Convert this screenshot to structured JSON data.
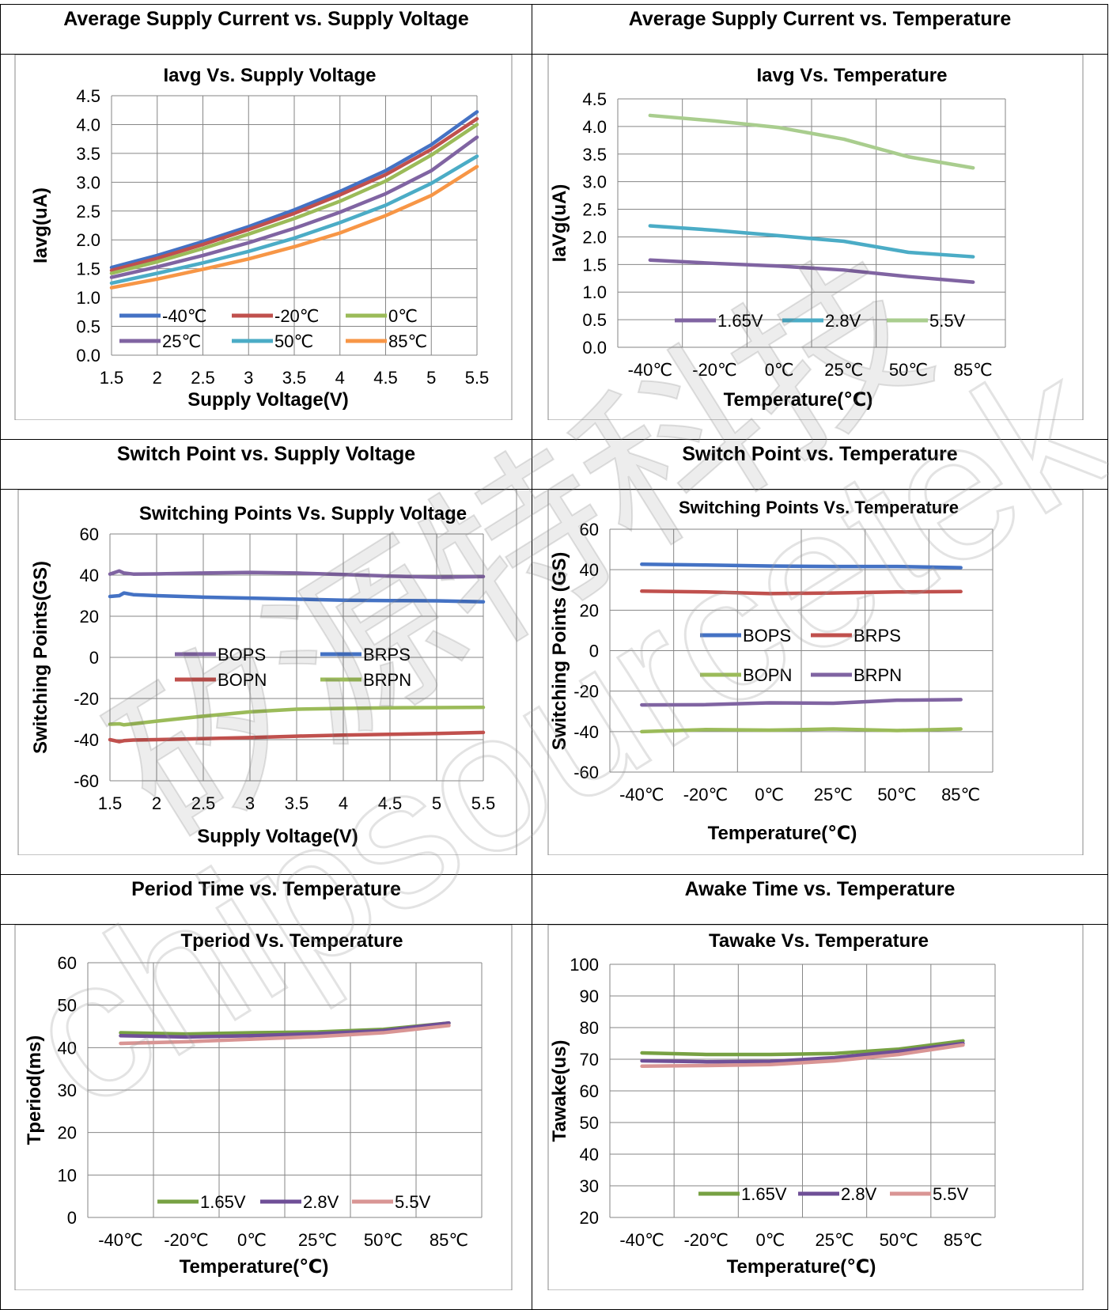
{
  "sections": [
    {
      "heading": "Average Supply Current vs. Supply Voltage"
    },
    {
      "heading": "Average Supply Current vs. Temperature"
    },
    {
      "heading": "Switch Point vs. Supply Voltage"
    },
    {
      "heading": "Switch Point vs. Temperature"
    },
    {
      "heading": "Period Time vs. Temperature"
    },
    {
      "heading": "Awake Time vs. Temperature"
    }
  ],
  "watermark": {
    "line1": "矽源特科技",
    "line2": "chipsourcetek"
  },
  "chart_data": [
    {
      "type": "line",
      "title": "Iavg Vs. Supply Voltage",
      "xlabel": "Supply Voltage(V)",
      "ylabel": "Iavg(uA)",
      "x_ticks": [
        "1.5",
        "2",
        "2.5",
        "3",
        "3.5",
        "4",
        "4.5",
        "5",
        "5.5"
      ],
      "y_ticks": [
        "0.0",
        "0.5",
        "1.0",
        "1.5",
        "2.0",
        "2.5",
        "3.0",
        "3.5",
        "4.0",
        "4.5"
      ],
      "xlim": [
        1.5,
        5.5
      ],
      "ylim": [
        0,
        4.5
      ],
      "grid": true,
      "legend": "bottom-inside",
      "x": [
        1.5,
        2.0,
        2.5,
        3.0,
        3.5,
        4.0,
        4.5,
        5.0,
        5.5
      ],
      "series": [
        {
          "name": "-40℃",
          "color": "#4472c4",
          "values": [
            1.52,
            1.73,
            1.97,
            2.23,
            2.52,
            2.84,
            3.2,
            3.65,
            4.22
          ]
        },
        {
          "name": "-20℃",
          "color": "#c0504d",
          "values": [
            1.47,
            1.68,
            1.92,
            2.18,
            2.46,
            2.78,
            3.13,
            3.57,
            4.1
          ]
        },
        {
          "name": "0℃",
          "color": "#9bbb59",
          "values": [
            1.42,
            1.62,
            1.85,
            2.1,
            2.37,
            2.67,
            3.02,
            3.47,
            4.0
          ]
        },
        {
          "name": "25℃",
          "color": "#8064a2",
          "values": [
            1.35,
            1.53,
            1.73,
            1.95,
            2.2,
            2.48,
            2.8,
            3.2,
            3.78
          ]
        },
        {
          "name": "50℃",
          "color": "#4bacc6",
          "values": [
            1.25,
            1.42,
            1.6,
            1.8,
            2.03,
            2.3,
            2.6,
            2.98,
            3.45
          ]
        },
        {
          "name": "85℃",
          "color": "#f79646",
          "values": [
            1.17,
            1.32,
            1.49,
            1.67,
            1.88,
            2.12,
            2.42,
            2.77,
            3.27
          ]
        }
      ]
    },
    {
      "type": "line",
      "title": "Iavg  Vs. Temperature",
      "xlabel": "Temperature(℃)",
      "ylabel": "IaVg(uA)",
      "categories": [
        "-40℃",
        "-20℃",
        "0℃",
        "25℃",
        "50℃",
        "85℃"
      ],
      "y_ticks": [
        "0.0",
        "0.5",
        "1.0",
        "1.5",
        "2.0",
        "2.5",
        "3.0",
        "3.5",
        "4.0",
        "4.5"
      ],
      "ylim": [
        0,
        4.5
      ],
      "grid": true,
      "legend": "bottom-inside",
      "series": [
        {
          "name": "1.65V",
          "color": "#8064a2",
          "values": [
            1.58,
            1.52,
            1.47,
            1.4,
            1.28,
            1.18
          ]
        },
        {
          "name": "2.8V",
          "color": "#4bacc6",
          "values": [
            2.2,
            2.12,
            2.02,
            1.92,
            1.72,
            1.64
          ]
        },
        {
          "name": "5.5V",
          "color": "#a9cd8e",
          "values": [
            4.2,
            4.1,
            3.98,
            3.77,
            3.45,
            3.25
          ]
        }
      ]
    },
    {
      "type": "line",
      "title": "Switching Points Vs. Supply Voltage",
      "xlabel": "Supply Voltage(V)",
      "ylabel": "Switching Points(GS)",
      "x_ticks": [
        "1.5",
        "2",
        "2.5",
        "3",
        "3.5",
        "4",
        "4.5",
        "5",
        "5.5"
      ],
      "y_ticks": [
        "-60",
        "-40",
        "-20",
        "0",
        "20",
        "40",
        "60"
      ],
      "xlim": [
        1.5,
        5.5
      ],
      "ylim": [
        -60,
        60
      ],
      "grid": true,
      "legend": "center-inside",
      "x": [
        1.5,
        1.6,
        1.65,
        1.75,
        2.0,
        2.5,
        3.0,
        3.5,
        4.0,
        4.5,
        5.0,
        5.5
      ],
      "series": [
        {
          "name": "BOPS",
          "color": "#8064a2",
          "values": [
            40.5,
            42,
            41,
            40.5,
            40.6,
            41,
            41.3,
            41,
            40.3,
            39.5,
            39,
            39.3
          ]
        },
        {
          "name": "BRPS",
          "color": "#4472c4",
          "values": [
            29.6,
            30,
            31.3,
            30.5,
            30.0,
            29.3,
            28.8,
            28.3,
            27.8,
            27.6,
            27.5,
            27.0
          ]
        },
        {
          "name": "BOPN",
          "color": "#c0504d",
          "values": [
            -40,
            -41,
            -40.5,
            -40.2,
            -40,
            -39.5,
            -39,
            -38.3,
            -37.8,
            -37.4,
            -37,
            -36.5
          ]
        },
        {
          "name": "BRPN",
          "color": "#9bbb59",
          "values": [
            -32.5,
            -32.3,
            -32.8,
            -32.3,
            -31,
            -28.6,
            -26.5,
            -25.2,
            -24.8,
            -24.5,
            -24.4,
            -24.3
          ]
        }
      ]
    },
    {
      "type": "line",
      "title": "Switching Points  Vs. Temperature",
      "xlabel": "Temperature(℃)",
      "ylabel": "Switching Points (GS)",
      "categories": [
        "-40℃",
        "-20℃",
        "0℃",
        "25℃",
        "50℃",
        "85℃"
      ],
      "y_ticks": [
        "-60",
        "-40",
        "-20",
        "0",
        "20",
        "40",
        "60"
      ],
      "ylim": [
        -60,
        60
      ],
      "grid": true,
      "legend": "center-inside",
      "series": [
        {
          "name": "BOPS",
          "color": "#4472c4",
          "values": [
            42.7,
            42.3,
            41.8,
            41.6,
            41.6,
            41
          ]
        },
        {
          "name": "BRPS",
          "color": "#c0504d",
          "values": [
            29.4,
            29,
            28.2,
            28.5,
            29,
            29.2
          ]
        },
        {
          "name": "BOPN",
          "color": "#9bbb59",
          "values": [
            -40,
            -39,
            -39.3,
            -38.7,
            -39.5,
            -38.7
          ]
        },
        {
          "name": "BRPN",
          "color": "#8064a2",
          "values": [
            -26.8,
            -26.7,
            -25.8,
            -26,
            -24.5,
            -24.2
          ]
        }
      ]
    },
    {
      "type": "line",
      "title": "Tperiod Vs. Temperature",
      "xlabel": "Temperature(℃)",
      "ylabel": "Tperiod(ms)",
      "categories": [
        "-40℃",
        "-20℃",
        "0℃",
        "25℃",
        "50℃",
        "85℃"
      ],
      "y_ticks": [
        "0",
        "10",
        "20",
        "30",
        "40",
        "50",
        "60"
      ],
      "ylim": [
        0,
        60
      ],
      "grid": true,
      "legend": "bottom-inside",
      "series": [
        {
          "name": "1.65V",
          "color": "#77a143",
          "values": [
            43.5,
            43.2,
            43.5,
            43.7,
            44.3,
            45.8
          ]
        },
        {
          "name": "2.8V",
          "color": "#6f4f97",
          "values": [
            42.8,
            42.5,
            42.8,
            43.3,
            44.0,
            45.8
          ]
        },
        {
          "name": "5.5V",
          "color": "#d99594",
          "values": [
            41,
            41.4,
            42.0,
            42.6,
            43.5,
            45.2
          ]
        }
      ]
    },
    {
      "type": "line",
      "title": "Tawake  Vs. Temperature",
      "xlabel": "Temperature(℃)",
      "ylabel": "Tawake(us)",
      "categories": [
        "-40℃",
        "-20℃",
        "0℃",
        "25℃",
        "50℃",
        "85℃"
      ],
      "y_ticks": [
        "20",
        "30",
        "40",
        "50",
        "60",
        "70",
        "80",
        "90",
        "100"
      ],
      "ylim": [
        20,
        100
      ],
      "grid": true,
      "legend": "bottom-inside",
      "series": [
        {
          "name": "1.65V",
          "color": "#77a143",
          "values": [
            72,
            71.5,
            71.5,
            71.8,
            73.2,
            75.8
          ]
        },
        {
          "name": "2.8V",
          "color": "#6f4f97",
          "values": [
            69.5,
            69.2,
            69.3,
            70.5,
            72.5,
            75.0
          ]
        },
        {
          "name": "5.5V",
          "color": "#d99594",
          "values": [
            67.8,
            68.0,
            68.3,
            69.5,
            71.5,
            74.5
          ]
        }
      ]
    }
  ]
}
